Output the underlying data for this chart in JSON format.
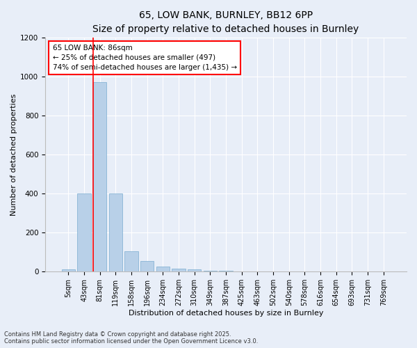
{
  "title1": "65, LOW BANK, BURNLEY, BB12 6PP",
  "title2": "Size of property relative to detached houses in Burnley",
  "xlabel": "Distribution of detached houses by size in Burnley",
  "ylabel": "Number of detached properties",
  "categories": [
    "5sqm",
    "43sqm",
    "81sqm",
    "119sqm",
    "158sqm",
    "196sqm",
    "234sqm",
    "272sqm",
    "310sqm",
    "349sqm",
    "387sqm",
    "425sqm",
    "463sqm",
    "502sqm",
    "540sqm",
    "578sqm",
    "616sqm",
    "654sqm",
    "693sqm",
    "731sqm",
    "769sqm"
  ],
  "values": [
    10,
    400,
    970,
    400,
    105,
    55,
    25,
    15,
    10,
    5,
    5,
    0,
    2,
    0,
    0,
    0,
    0,
    0,
    0,
    0,
    0
  ],
  "bar_color": "#b8d0e8",
  "bar_edge_color": "#7aadd0",
  "ylim": [
    0,
    1200
  ],
  "yticks": [
    0,
    200,
    400,
    600,
    800,
    1000,
    1200
  ],
  "red_line_x": 2.0,
  "annot_line1": "65 LOW BANK: 86sqm",
  "annot_line2": "← 25% of detached houses are smaller (497)",
  "annot_line3": "74% of semi-detached houses are larger (1,435) →",
  "footer_line1": "Contains HM Land Registry data © Crown copyright and database right 2025.",
  "footer_line2": "Contains public sector information licensed under the Open Government Licence v3.0.",
  "background_color": "#e8eef8",
  "plot_background": "#e8eef8",
  "grid_color": "#ffffff",
  "title_fontsize": 10,
  "subtitle_fontsize": 9,
  "tick_fontsize": 7,
  "ylabel_fontsize": 8,
  "xlabel_fontsize": 8,
  "annot_fontsize": 7.5,
  "footer_fontsize": 6
}
